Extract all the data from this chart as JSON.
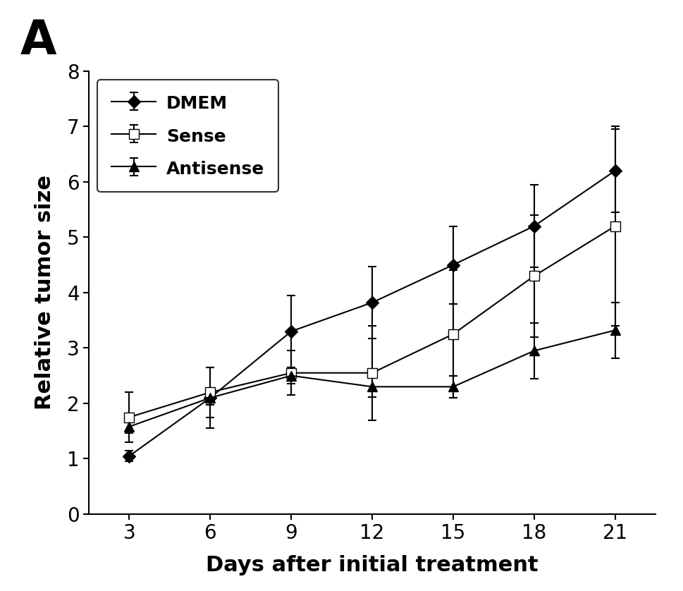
{
  "title_label": "A",
  "xlabel": "Days after initial treatment",
  "ylabel": "Relative tumor size",
  "x": [
    3,
    6,
    9,
    12,
    15,
    18,
    21
  ],
  "dmem_y": [
    1.05,
    2.1,
    3.3,
    3.82,
    4.5,
    5.2,
    6.2
  ],
  "dmem_err": [
    0.1,
    0.55,
    0.65,
    0.65,
    0.7,
    0.75,
    0.75
  ],
  "sense_y": [
    1.75,
    2.2,
    2.55,
    2.55,
    3.25,
    4.3,
    5.2
  ],
  "sense_err": [
    0.45,
    0.45,
    0.4,
    0.85,
    1.15,
    1.1,
    1.8
  ],
  "antisense_y": [
    1.58,
    2.1,
    2.5,
    2.3,
    2.3,
    2.95,
    3.32
  ],
  "antisense_err": [
    0.12,
    0.12,
    0.15,
    0.18,
    0.2,
    0.5,
    0.5
  ],
  "ylim": [
    0,
    8
  ],
  "yticks": [
    0,
    1,
    2,
    3,
    4,
    5,
    6,
    7,
    8
  ],
  "xticks": [
    3,
    6,
    9,
    12,
    15,
    18,
    21
  ],
  "background_color": "#ffffff",
  "line_color": "#000000",
  "legend_labels": [
    "DMEM",
    "Sense",
    "Antisense"
  ],
  "figsize": [
    9.69,
    8.38
  ],
  "dpi": 100
}
